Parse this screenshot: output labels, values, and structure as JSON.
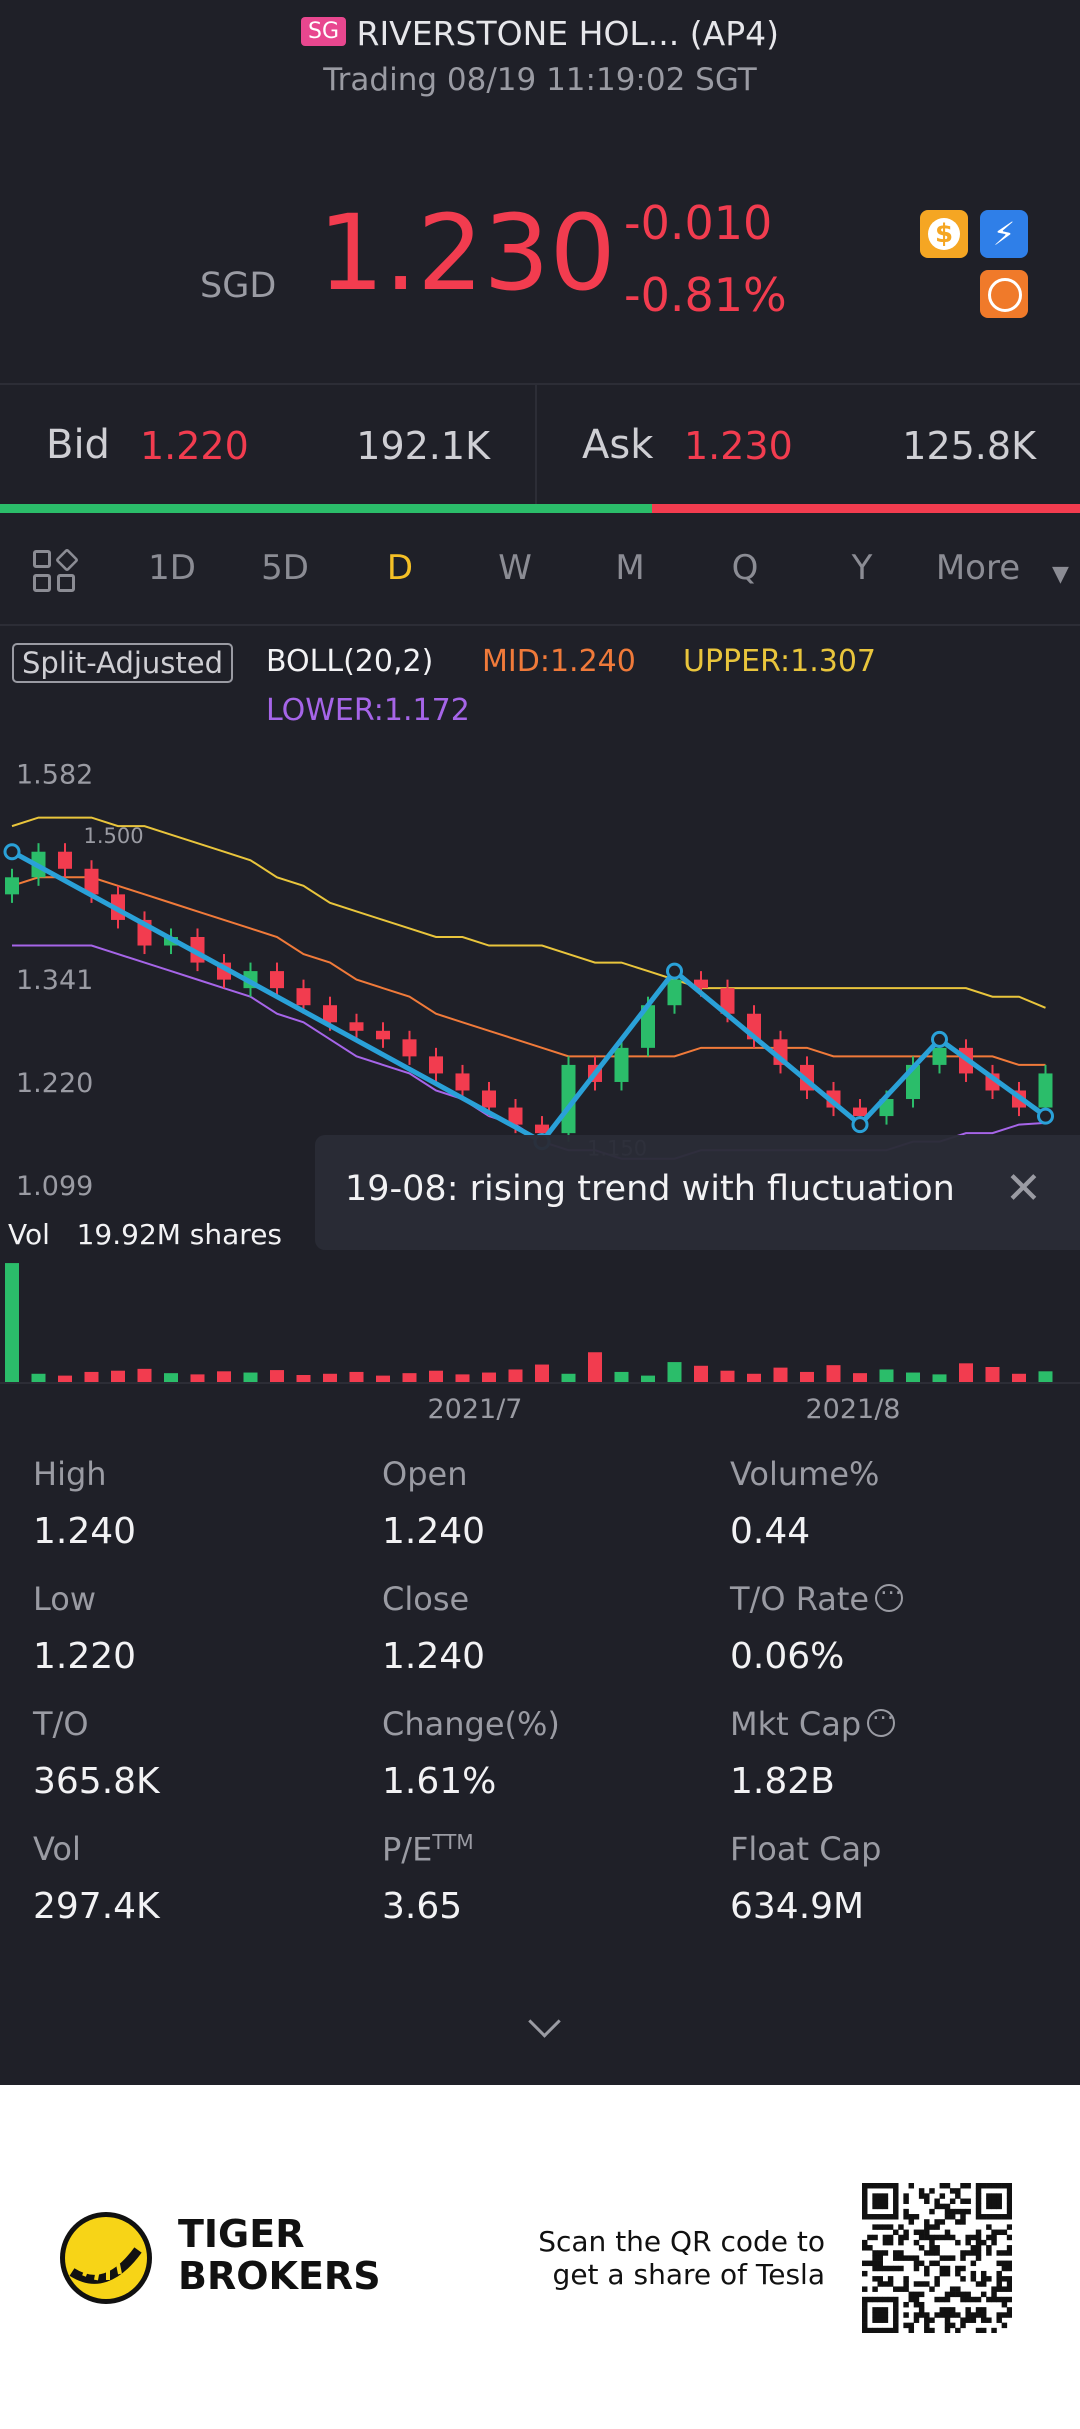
{
  "header": {
    "badge": "SG",
    "title": "RIVERSTONE HOL... (AP4)",
    "status": "Trading 08/19 11:19:02 SGT"
  },
  "quote": {
    "currency": "SGD",
    "price": "1.230",
    "change": "-0.010",
    "change_pct": "-0.81%"
  },
  "book": {
    "bid_label": "Bid",
    "bid": "1.220",
    "bid_size": "192.1K",
    "ask_label": "Ask",
    "ask": "1.230",
    "ask_size": "125.8K"
  },
  "tabs": [
    "1D",
    "5D",
    "D",
    "W",
    "M",
    "Q",
    "Y",
    "More"
  ],
  "active_tab": 2,
  "indicator": {
    "adjust": "Split-Adjusted",
    "name": "BOLL(20,2)",
    "mid": "MID:1.240",
    "upper": "UPPER:1.307",
    "lower": "LOWER:1.172"
  },
  "chart_data": {
    "type": "candlestick",
    "open": [
      1.44,
      1.46,
      1.49,
      1.47,
      1.44,
      1.41,
      1.38,
      1.39,
      1.36,
      1.33,
      1.35,
      1.33,
      1.31,
      1.29,
      1.28,
      1.27,
      1.25,
      1.23,
      1.21,
      1.19,
      1.17,
      1.16,
      1.24,
      1.22,
      1.26,
      1.31,
      1.34,
      1.33,
      1.3,
      1.27,
      1.24,
      1.21,
      1.19,
      1.18,
      1.2,
      1.24,
      1.26,
      1.23,
      1.21,
      1.19
    ],
    "high": [
      1.47,
      1.5,
      1.5,
      1.48,
      1.45,
      1.42,
      1.4,
      1.4,
      1.37,
      1.36,
      1.36,
      1.34,
      1.32,
      1.3,
      1.29,
      1.28,
      1.26,
      1.24,
      1.22,
      1.2,
      1.18,
      1.25,
      1.25,
      1.27,
      1.32,
      1.35,
      1.35,
      1.34,
      1.31,
      1.28,
      1.25,
      1.22,
      1.2,
      1.21,
      1.25,
      1.27,
      1.27,
      1.24,
      1.22,
      1.24
    ],
    "low": [
      1.43,
      1.45,
      1.46,
      1.43,
      1.4,
      1.37,
      1.37,
      1.35,
      1.33,
      1.32,
      1.32,
      1.3,
      1.28,
      1.27,
      1.26,
      1.24,
      1.22,
      1.2,
      1.18,
      1.16,
      1.15,
      1.15,
      1.21,
      1.21,
      1.25,
      1.3,
      1.32,
      1.29,
      1.26,
      1.23,
      1.2,
      1.18,
      1.17,
      1.17,
      1.19,
      1.23,
      1.22,
      1.2,
      1.18,
      1.18
    ],
    "close": [
      1.46,
      1.49,
      1.47,
      1.44,
      1.41,
      1.38,
      1.39,
      1.36,
      1.34,
      1.35,
      1.33,
      1.31,
      1.29,
      1.28,
      1.27,
      1.25,
      1.23,
      1.21,
      1.19,
      1.17,
      1.16,
      1.24,
      1.22,
      1.26,
      1.31,
      1.34,
      1.33,
      1.3,
      1.27,
      1.24,
      1.21,
      1.19,
      1.18,
      1.2,
      1.24,
      1.26,
      1.23,
      1.21,
      1.19,
      1.23
    ],
    "bands": {
      "upper": {
        "color": "#e9c53c",
        "values": [
          1.52,
          1.53,
          1.53,
          1.53,
          1.52,
          1.52,
          1.51,
          1.5,
          1.49,
          1.48,
          1.46,
          1.45,
          1.43,
          1.42,
          1.41,
          1.4,
          1.39,
          1.39,
          1.38,
          1.38,
          1.38,
          1.37,
          1.36,
          1.36,
          1.35,
          1.34,
          1.33,
          1.33,
          1.33,
          1.33,
          1.33,
          1.33,
          1.33,
          1.33,
          1.33,
          1.33,
          1.33,
          1.32,
          1.32,
          1.307
        ]
      },
      "mid": {
        "color": "#f07a3a",
        "values": [
          1.45,
          1.46,
          1.46,
          1.46,
          1.45,
          1.44,
          1.43,
          1.42,
          1.41,
          1.4,
          1.39,
          1.37,
          1.36,
          1.34,
          1.33,
          1.32,
          1.3,
          1.29,
          1.28,
          1.27,
          1.26,
          1.25,
          1.25,
          1.25,
          1.25,
          1.25,
          1.26,
          1.26,
          1.26,
          1.26,
          1.26,
          1.25,
          1.25,
          1.25,
          1.25,
          1.25,
          1.25,
          1.25,
          1.24,
          1.24
        ]
      },
      "lower": {
        "color": "#a665e8",
        "values": [
          1.38,
          1.38,
          1.38,
          1.38,
          1.37,
          1.36,
          1.35,
          1.34,
          1.33,
          1.32,
          1.3,
          1.29,
          1.27,
          1.25,
          1.24,
          1.23,
          1.21,
          1.2,
          1.18,
          1.17,
          1.15,
          1.14,
          1.14,
          1.13,
          1.13,
          1.13,
          1.14,
          1.14,
          1.14,
          1.14,
          1.14,
          1.14,
          1.14,
          1.14,
          1.15,
          1.15,
          1.16,
          1.16,
          1.17,
          1.172
        ]
      }
    },
    "trend": {
      "color": "#2aa1d8",
      "x": [
        0,
        20,
        25,
        32,
        35,
        39
      ],
      "y": [
        1.49,
        1.15,
        1.35,
        1.17,
        1.27,
        1.18
      ]
    },
    "annotations": [
      {
        "index": 1,
        "value": 1.5,
        "label": "1.500"
      },
      {
        "index": 20,
        "value": 1.15,
        "label": "1.150"
      }
    ],
    "ylim": [
      1.064,
      1.621
    ],
    "yticks": [
      1.582,
      1.341,
      {
        "value": 1.22,
        "label": "1.220"
      },
      1.099
    ],
    "x_labels": [
      "2021/7",
      "2021/8"
    ],
    "up_color": "#2bbd6a",
    "down_color": "#f23c4f",
    "volume": {
      "label": "Vol",
      "total": "19.92M shares",
      "ylim": [
        0,
        20
      ],
      "values": [
        19.5,
        1.5,
        1.2,
        1.8,
        2.0,
        2.3,
        1.6,
        1.4,
        1.9,
        1.7,
        2.1,
        1.3,
        1.5,
        1.8,
        1.2,
        1.6,
        2.0,
        1.4,
        1.7,
        2.2,
        3.0,
        1.5,
        5.0,
        1.8,
        1.2,
        3.4,
        2.8,
        2.0,
        1.5,
        2.5,
        1.8,
        2.9,
        1.6,
        2.2,
        1.7,
        1.4,
        3.2,
        2.6,
        1.5,
        1.9
      ]
    }
  },
  "tooltip": "19-08: rising trend with fluctuation",
  "stats": [
    {
      "label": "High",
      "value": "1.240"
    },
    {
      "label": "Open",
      "value": "1.240"
    },
    {
      "label": "Volume%",
      "value": "0.44"
    },
    {
      "label": "Low",
      "value": "1.220"
    },
    {
      "label": "Close",
      "value": "1.240"
    },
    {
      "label": "T/O Rate",
      "value": "0.06%"
    },
    {
      "label": "T/O",
      "value": "365.8K"
    },
    {
      "label": "Change(%)",
      "value": "1.61%"
    },
    {
      "label": "Mkt Cap",
      "value": "1.82B"
    },
    {
      "label": "Vol",
      "value": "297.4K"
    },
    {
      "label": "P/E",
      "sup": "TTM",
      "value": "3.65"
    },
    {
      "label": "Float Cap",
      "value": "634.9M"
    }
  ],
  "footer": {
    "brand": [
      "TIGER",
      "BROKERS"
    ],
    "promo": [
      "Scan the QR code to",
      "get a share of Tesla"
    ]
  }
}
